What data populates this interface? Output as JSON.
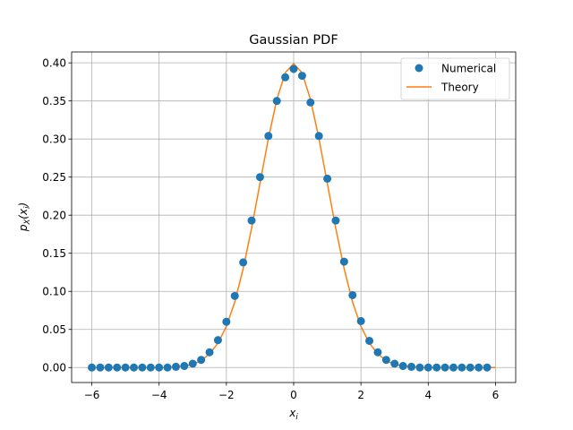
{
  "chart_data": {
    "type": "line",
    "title": "Gaussian PDF",
    "xlabel": "x_i",
    "ylabel": "p_X(x_i)",
    "xlim": [
      -6.6,
      6.6
    ],
    "ylim": [
      -0.0197,
      0.4143
    ],
    "xticks": [
      -6,
      -4,
      -2,
      0,
      2,
      4,
      6
    ],
    "xtick_labels": [
      "−6",
      "−4",
      "−2",
      "0",
      "2",
      "4",
      "6"
    ],
    "yticks": [
      0.0,
      0.05,
      0.1,
      0.15,
      0.2,
      0.25,
      0.3,
      0.35,
      0.4
    ],
    "ytick_labels": [
      "0.00",
      "0.05",
      "0.10",
      "0.15",
      "0.20",
      "0.25",
      "0.30",
      "0.35",
      "0.40"
    ],
    "grid": true,
    "legend_position": "top-right",
    "colors": {
      "numerical": "#1f77b4",
      "theory": "#ff7f0e"
    },
    "series": [
      {
        "name": "Numerical",
        "style": "markers",
        "x": [
          -6.0,
          -5.75,
          -5.5,
          -5.25,
          -5.0,
          -4.75,
          -4.5,
          -4.25,
          -4.0,
          -3.75,
          -3.5,
          -3.25,
          -3.0,
          -2.75,
          -2.5,
          -2.25,
          -2.0,
          -1.75,
          -1.5,
          -1.25,
          -1.0,
          -0.75,
          -0.5,
          -0.25,
          0.0,
          0.25,
          0.5,
          0.75,
          1.0,
          1.25,
          1.5,
          1.75,
          2.0,
          2.25,
          2.5,
          2.75,
          3.0,
          3.25,
          3.5,
          3.75,
          4.0,
          4.25,
          4.5,
          4.75,
          5.0,
          5.25,
          5.5,
          5.75
        ],
        "y": [
          0.0,
          0.0,
          0.0,
          0.0,
          0.0,
          0.0,
          0.0,
          0.0,
          0.0,
          0.0,
          0.001,
          0.002,
          0.005,
          0.01,
          0.02,
          0.036,
          0.06,
          0.094,
          0.138,
          0.193,
          0.25,
          0.304,
          0.35,
          0.381,
          0.392,
          0.383,
          0.348,
          0.304,
          0.248,
          0.193,
          0.139,
          0.095,
          0.061,
          0.035,
          0.02,
          0.01,
          0.005,
          0.002,
          0.001,
          0.0,
          0.0,
          0.0,
          0.0,
          0.0,
          0.0,
          0.0,
          0.0,
          0.0
        ]
      },
      {
        "name": "Theory",
        "style": "line",
        "x": [
          -6.0,
          -5.75,
          -5.5,
          -5.25,
          -5.0,
          -4.75,
          -4.5,
          -4.25,
          -4.0,
          -3.75,
          -3.5,
          -3.25,
          -3.0,
          -2.75,
          -2.5,
          -2.25,
          -2.0,
          -1.75,
          -1.5,
          -1.25,
          -1.0,
          -0.75,
          -0.5,
          -0.25,
          0.0,
          0.25,
          0.5,
          0.75,
          1.0,
          1.25,
          1.5,
          1.75,
          2.0,
          2.25,
          2.5,
          2.75,
          3.0,
          3.25,
          3.5,
          3.75,
          4.0,
          4.25,
          4.5,
          4.75,
          5.0,
          5.25,
          5.5,
          5.75,
          6.0
        ],
        "y": [
          0.0,
          0.0,
          0.0,
          0.0,
          0.0,
          0.0,
          0.0,
          0.0,
          0.0,
          0.0,
          0.001,
          0.002,
          0.004,
          0.009,
          0.018,
          0.032,
          0.054,
          0.086,
          0.13,
          0.183,
          0.242,
          0.301,
          0.352,
          0.387,
          0.399,
          0.387,
          0.352,
          0.301,
          0.242,
          0.183,
          0.13,
          0.086,
          0.054,
          0.032,
          0.018,
          0.009,
          0.004,
          0.002,
          0.001,
          0.0,
          0.0,
          0.0,
          0.0,
          0.0,
          0.0,
          0.0,
          0.0,
          0.0,
          0.0
        ]
      }
    ]
  }
}
